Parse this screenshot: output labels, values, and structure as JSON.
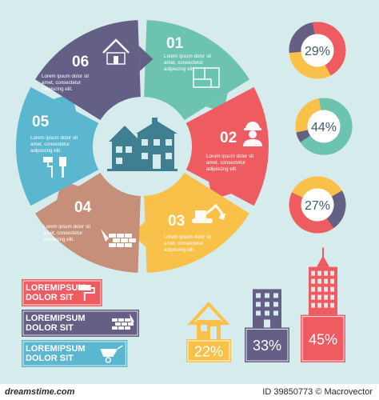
{
  "colors": {
    "background": "#d6ecec",
    "teal": "#6cc3b0",
    "red": "#ee5b60",
    "yellow": "#f9c14a",
    "brown": "#c68f7a",
    "blue": "#5bb6cf",
    "purple": "#635f85",
    "house": "#3f7f91"
  },
  "wheel": {
    "segments": [
      {
        "number": "01",
        "text": [
          "Lorem ipsum dolor sit",
          "amet, consectetur",
          "adipiscing elit."
        ],
        "icon": "floor-plan-icon",
        "color": "#6cc3b0"
      },
      {
        "number": "02",
        "text": [
          "Lorem ipsum dolor sit",
          "amet, consectetur",
          "adipiscing elit."
        ],
        "icon": "worker-icon",
        "color": "#ee5b60"
      },
      {
        "number": "03",
        "text": [
          "Lorem ipsum dolor sit",
          "amet, consectetur",
          "adipiscing elit."
        ],
        "icon": "excavator-icon",
        "color": "#f9c14a"
      },
      {
        "number": "04",
        "text": [
          "Lorem ipsum dolor sit",
          "amet, consectetur",
          "adipiscing elit."
        ],
        "icon": "brick-wall-icon",
        "color": "#c68f7a"
      },
      {
        "number": "05",
        "text": [
          "Lorem ipsum dolor sit",
          "amet, consectetur",
          "adipiscing elit."
        ],
        "icon": "paint-tools-icon",
        "color": "#5bb6cf"
      },
      {
        "number": "06",
        "text": [
          "Lorem ipsum dolor sit",
          "amet, consectetur",
          "adipiscing elit."
        ],
        "icon": "house-outline-icon",
        "color": "#635f85"
      }
    ],
    "center_icon": "two-storey-house-icon"
  },
  "donuts": [
    {
      "label": "29%",
      "value": 29,
      "color": "#ee5b60"
    },
    {
      "label": "44%",
      "value": 44,
      "color": "#6cc3b0"
    },
    {
      "label": "27%",
      "value": 27,
      "color": "#ee5b60"
    }
  ],
  "bar_labels": [
    {
      "text": [
        "LOREMIPSUM",
        "DOLOR SIT"
      ],
      "icon": "paint-roller-icon",
      "color": "#ee5b60",
      "value": 0.48
    },
    {
      "text": [
        "LOREMIPSUM",
        "DOLOR SIT"
      ],
      "icon": "brick-wall-icon",
      "color": "#635f85",
      "value": 0.7
    },
    {
      "text": [
        "LOREMIPSUM",
        "DOLOR SIT"
      ],
      "icon": "wheelbarrow-icon",
      "color": "#5bb6cf",
      "value": 0.63
    }
  ],
  "buildings": [
    {
      "label": "22%",
      "value": 22,
      "icon": "small-house-icon",
      "color": "#f9c14a"
    },
    {
      "label": "33%",
      "value": 33,
      "icon": "office-building-icon",
      "color": "#635f85"
    },
    {
      "label": "45%",
      "value": 45,
      "icon": "skyscraper-icon",
      "color": "#ee5b60"
    }
  ],
  "footer": {
    "left": "dreamstime.com",
    "right": "ID 39850773 © Macrovector"
  }
}
